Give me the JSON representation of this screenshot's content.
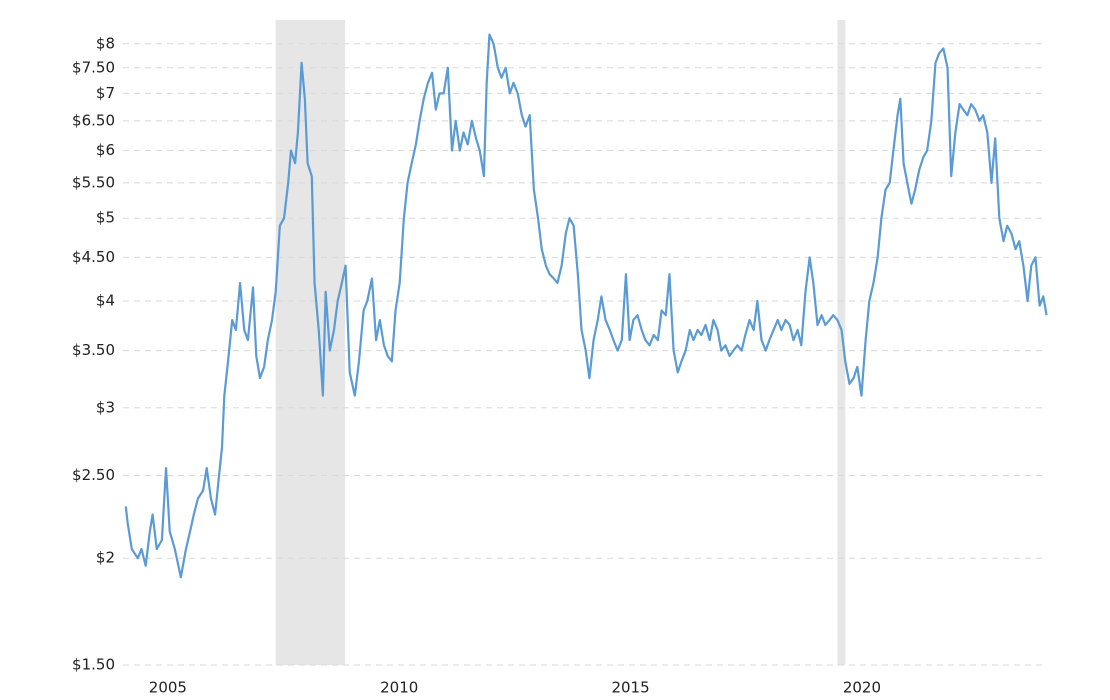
{
  "chart_data": {
    "type": "line",
    "log_scale": true,
    "grid": true,
    "color": "#5b9bd5",
    "shade_color": "#e6e6e6",
    "xlim": [
      2004.03,
      2024.0
    ],
    "xticks": [
      2005,
      2010,
      2015,
      2020
    ],
    "ylim": [
      1.5,
      8.53
    ],
    "yticks": [
      {
        "value": 1.5,
        "label": "$1.50"
      },
      {
        "value": 2,
        "label": "$2"
      },
      {
        "value": 2.5,
        "label": "$2.50"
      },
      {
        "value": 3,
        "label": "$3"
      },
      {
        "value": 3.5,
        "label": "$3.50"
      },
      {
        "value": 4,
        "label": "$4"
      },
      {
        "value": 4.5,
        "label": "$4.50"
      },
      {
        "value": 5,
        "label": "$5"
      },
      {
        "value": 5.5,
        "label": "$5.50"
      },
      {
        "value": 6,
        "label": "$6"
      },
      {
        "value": 6.5,
        "label": "$6.50"
      },
      {
        "value": 7,
        "label": "$7"
      },
      {
        "value": 7.5,
        "label": "$7.50"
      },
      {
        "value": 8,
        "label": "$8"
      }
    ],
    "shaded_regions": [
      [
        2007.33,
        2008.83
      ],
      [
        2019.47,
        2019.64
      ]
    ],
    "x": [
      2004.09,
      2004.13,
      2004.22,
      2004.35,
      2004.43,
      2004.52,
      2004.61,
      2004.67,
      2004.76,
      2004.87,
      2004.96,
      2005.04,
      2005.15,
      2005.28,
      2005.39,
      2005.48,
      2005.56,
      2005.65,
      2005.76,
      2005.84,
      2005.93,
      2006.02,
      2006.09,
      2006.17,
      2006.22,
      2006.3,
      2006.39,
      2006.47,
      2006.56,
      2006.65,
      2006.73,
      2006.84,
      2006.91,
      2006.99,
      2007.08,
      2007.16,
      2007.25,
      2007.33,
      2007.42,
      2007.51,
      2007.6,
      2007.66,
      2007.75,
      2007.81,
      2007.89,
      2007.96,
      2008.02,
      2008.11,
      2008.17,
      2008.26,
      2008.35,
      2008.41,
      2008.5,
      2008.59,
      2008.67,
      2008.76,
      2008.84,
      2008.93,
      2009.04,
      2009.13,
      2009.23,
      2009.31,
      2009.41,
      2009.5,
      2009.58,
      2009.67,
      2009.75,
      2009.84,
      2009.92,
      2010.01,
      2010.1,
      2010.18,
      2010.27,
      2010.36,
      2010.44,
      2010.53,
      2010.62,
      2010.71,
      2010.79,
      2010.87,
      2010.96,
      2011.05,
      2011.14,
      2011.22,
      2011.31,
      2011.39,
      2011.48,
      2011.57,
      2011.66,
      2011.74,
      2011.83,
      2011.89,
      2011.95,
      2012.04,
      2012.13,
      2012.21,
      2012.3,
      2012.39,
      2012.47,
      2012.56,
      2012.65,
      2012.73,
      2012.82,
      2012.91,
      2013.0,
      2013.08,
      2013.17,
      2013.25,
      2013.34,
      2013.42,
      2013.51,
      2013.6,
      2013.68,
      2013.77,
      2013.86,
      2013.94,
      2014.03,
      2014.11,
      2014.2,
      2014.29,
      2014.37,
      2014.46,
      2014.55,
      2014.63,
      2014.72,
      2014.81,
      2014.9,
      2014.98,
      2015.06,
      2015.15,
      2015.24,
      2015.32,
      2015.41,
      2015.5,
      2015.59,
      2015.67,
      2015.76,
      2015.84,
      2015.93,
      2016.02,
      2016.1,
      2016.19,
      2016.28,
      2016.36,
      2016.45,
      2016.53,
      2016.62,
      2016.71,
      2016.79,
      2016.88,
      2016.96,
      2017.05,
      2017.14,
      2017.22,
      2017.31,
      2017.4,
      2017.48,
      2017.57,
      2017.66,
      2017.74,
      2017.83,
      2017.92,
      2018.0,
      2018.09,
      2018.18,
      2018.26,
      2018.35,
      2018.44,
      2018.52,
      2018.61,
      2018.69,
      2018.78,
      2018.87,
      2018.95,
      2019.04,
      2019.13,
      2019.21,
      2019.3,
      2019.38,
      2019.47,
      2019.56,
      2019.64,
      2019.73,
      2019.82,
      2019.9,
      2019.99,
      2020.08,
      2020.16,
      2020.25,
      2020.34,
      2020.42,
      2020.51,
      2020.6,
      2020.68,
      2020.77,
      2020.83,
      2020.9,
      2020.98,
      2021.07,
      2021.15,
      2021.24,
      2021.33,
      2021.41,
      2021.5,
      2021.59,
      2021.67,
      2021.76,
      2021.85,
      2021.93,
      2022.02,
      2022.11,
      2022.19,
      2022.28,
      2022.36,
      2022.45,
      2022.54,
      2022.62,
      2022.71,
      2022.8,
      2022.88,
      2022.97,
      2023.06,
      2023.14,
      2023.23,
      2023.32,
      2023.4,
      2023.49,
      2023.58,
      2023.66,
      2023.75,
      2023.84,
      2023.92,
      2023.99
    ],
    "values": [
      2.3,
      2.2,
      2.05,
      2.0,
      2.05,
      1.96,
      2.15,
      2.25,
      2.05,
      2.1,
      2.55,
      2.15,
      2.05,
      1.9,
      2.05,
      2.15,
      2.25,
      2.35,
      2.4,
      2.55,
      2.35,
      2.25,
      2.45,
      2.7,
      3.1,
      3.4,
      3.8,
      3.7,
      4.2,
      3.7,
      3.6,
      4.15,
      3.45,
      3.25,
      3.35,
      3.6,
      3.8,
      4.1,
      4.9,
      5.0,
      5.5,
      6.0,
      5.8,
      6.3,
      7.6,
      6.9,
      5.8,
      5.6,
      4.2,
      3.7,
      3.1,
      4.1,
      3.5,
      3.7,
      4.0,
      4.2,
      4.4,
      3.3,
      3.1,
      3.4,
      3.9,
      4.0,
      4.25,
      3.6,
      3.8,
      3.55,
      3.45,
      3.4,
      3.9,
      4.2,
      5.0,
      5.5,
      5.8,
      6.1,
      6.5,
      6.9,
      7.2,
      7.4,
      6.7,
      7.0,
      7.0,
      7.5,
      6.0,
      6.5,
      6.0,
      6.3,
      6.1,
      6.5,
      6.2,
      6.0,
      5.6,
      7.2,
      8.2,
      8.0,
      7.5,
      7.3,
      7.5,
      7.0,
      7.2,
      7.0,
      6.6,
      6.4,
      6.6,
      5.4,
      5.0,
      4.6,
      4.4,
      4.3,
      4.25,
      4.2,
      4.4,
      4.8,
      5.0,
      4.9,
      4.3,
      3.7,
      3.5,
      3.25,
      3.6,
      3.8,
      4.05,
      3.8,
      3.7,
      3.6,
      3.5,
      3.6,
      4.3,
      3.6,
      3.8,
      3.85,
      3.7,
      3.6,
      3.55,
      3.65,
      3.6,
      3.9,
      3.85,
      4.3,
      3.5,
      3.3,
      3.4,
      3.5,
      3.7,
      3.6,
      3.7,
      3.65,
      3.75,
      3.6,
      3.8,
      3.7,
      3.5,
      3.55,
      3.45,
      3.5,
      3.55,
      3.5,
      3.65,
      3.8,
      3.7,
      4.0,
      3.6,
      3.5,
      3.6,
      3.7,
      3.8,
      3.7,
      3.8,
      3.75,
      3.6,
      3.7,
      3.55,
      4.1,
      4.5,
      4.2,
      3.75,
      3.85,
      3.75,
      3.8,
      3.85,
      3.8,
      3.7,
      3.4,
      3.2,
      3.25,
      3.35,
      3.1,
      3.6,
      4.0,
      4.2,
      4.5,
      5.0,
      5.4,
      5.5,
      6.0,
      6.6,
      6.9,
      5.8,
      5.5,
      5.2,
      5.4,
      5.7,
      5.9,
      6.0,
      6.5,
      7.6,
      7.8,
      7.9,
      7.5,
      5.6,
      6.3,
      6.8,
      6.7,
      6.6,
      6.8,
      6.7,
      6.5,
      6.6,
      6.3,
      5.5,
      6.2,
      5.0,
      4.7,
      4.9,
      4.8,
      4.6,
      4.7,
      4.4,
      4.0,
      4.4,
      4.5,
      3.95,
      4.05,
      3.85
    ]
  }
}
